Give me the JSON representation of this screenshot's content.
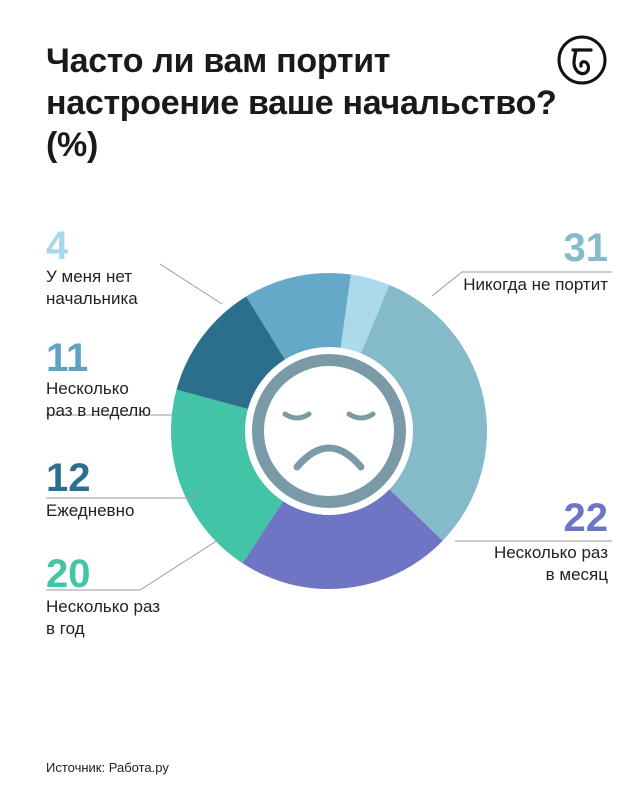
{
  "header": {
    "title": "Часто ли вам портит настроение ваше начальство? (%)"
  },
  "chart_data": {
    "type": "pie",
    "variant": "donut",
    "title": "Часто ли вам портит настроение ваше начальство? (%)",
    "series": [
      {
        "label": "Никогда не портит",
        "value": 31,
        "color": "#85bac8"
      },
      {
        "label": "Несколько раз в месяц",
        "value": 22,
        "color": "#6e75c4"
      },
      {
        "label": "Несколько раз в год",
        "value": 20,
        "color": "#43c4a6"
      },
      {
        "label": "Ежедневно",
        "value": 12,
        "color": "#2c6f8c"
      },
      {
        "label": "Несколько раз в неделю",
        "value": 11,
        "color": "#66a8c8"
      },
      {
        "label": "У меня нет начальника",
        "value": 4,
        "color": "#acd9ec"
      }
    ],
    "center_icon": "sad-face-icon",
    "center_icon_color": "#7a9aa8"
  },
  "labels": {
    "never": {
      "value": "31",
      "text": "Никогда не портит"
    },
    "month": {
      "value": "22",
      "line1": "Несколько раз",
      "line2": "в месяц"
    },
    "year": {
      "value": "20",
      "line1": "Несколько раз",
      "line2": "в год"
    },
    "daily": {
      "value": "12",
      "text": "Ежедневно"
    },
    "week": {
      "value": "11",
      "line1": "Несколько",
      "line2": "раз в неделю"
    },
    "noboss": {
      "value": "4",
      "line1": "У меня нет",
      "line2": "начальника"
    }
  },
  "footer": {
    "source": "Источник: Работа.ру"
  },
  "logo": {
    "icon": "newspaper-logo-icon"
  }
}
